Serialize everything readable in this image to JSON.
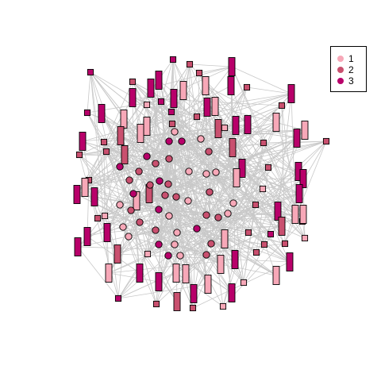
{
  "legend": {
    "items": [
      {
        "label": "1",
        "color": "#F7A8B8"
      },
      {
        "label": "2",
        "color": "#C9506F"
      },
      {
        "label": "3",
        "color": "#B8006A"
      }
    ]
  },
  "colors": {
    "edge": "#C8C8C8",
    "node_border": "#000000",
    "group_1": "#F7A8B8",
    "group_2": "#C9506F",
    "group_3": "#B8006A"
  },
  "node_shapes": [
    "square",
    "rectangle",
    "circle"
  ]
}
